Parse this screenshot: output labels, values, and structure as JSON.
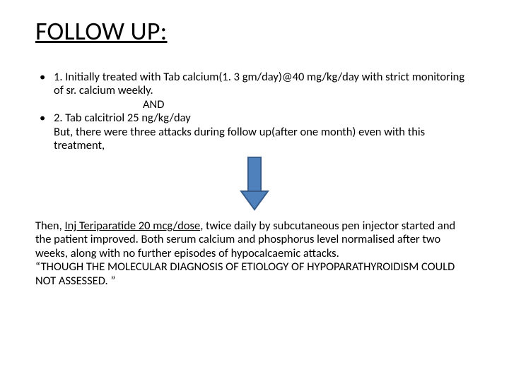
{
  "title": "FOLLOW UP:",
  "bullets": {
    "b1": "1. Initially treated with Tab calcium(1. 3 gm/day)@40 mg/kg/day with strict monitoring of sr. calcium weekly.",
    "and": "AND",
    "b2": "2. Tab calcitriol 25 ng/kg/day",
    "butLine": "But, there were three attacks during follow up(after one month) even with this treatment,"
  },
  "arrow": {
    "fill": "#4f81bd",
    "stroke": "#385d8a",
    "width": 42,
    "height": 78
  },
  "closing": {
    "thenPrefix": "Then, ",
    "thenUnderlined": "Inj Teriparatide 20 mcg/dose",
    "thenRest": ", twice daily by subcutaneous pen injector started and the patient improved. Both serum calcium and phosphorus level normalised after two weeks, along with no further episodes of hypocalcaemic attacks.",
    "quote": "“THOUGH THE MOLECULAR DIAGNOSIS OF ETIOLOGY OF HYPOPARATHYROIDISM COULD NOT ASSESSED. ”"
  }
}
